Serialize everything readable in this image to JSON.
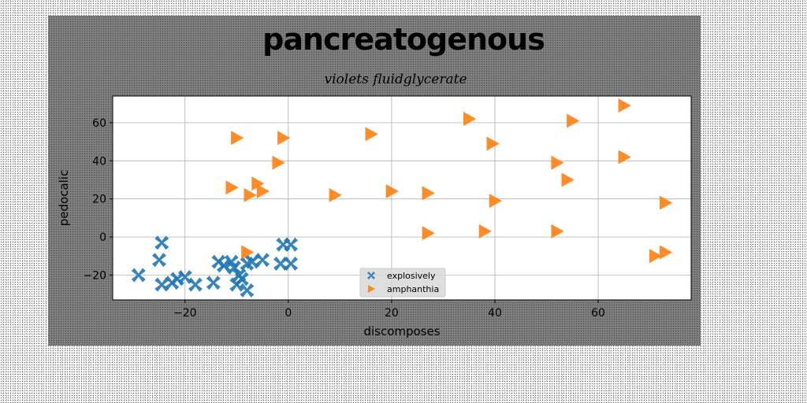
{
  "chart_data": {
    "type": "scatter",
    "title": "pancreatogenous",
    "subtitle": "violets fluidglycerate",
    "xlabel": "discomposes",
    "ylabel": "pedocalic",
    "xlim": [
      -34,
      78
    ],
    "ylim": [
      -33,
      74
    ],
    "xticks": [
      -20,
      0,
      20,
      40,
      60
    ],
    "yticks": [
      -20,
      0,
      20,
      40,
      60
    ],
    "xtick_labels": [
      "−20",
      "0",
      "20",
      "40",
      "60"
    ],
    "ytick_labels": [
      "−20",
      "0",
      "20",
      "40",
      "60"
    ],
    "grid": true,
    "legend_position": "lower center",
    "series": [
      {
        "name": "explosively",
        "color": "#1f77b4",
        "marker": "x",
        "points": [
          [
            -29,
            -20
          ],
          [
            -24.5,
            -3
          ],
          [
            -25,
            -12
          ],
          [
            -24.5,
            -25
          ],
          [
            -22.5,
            -24
          ],
          [
            -21.5,
            -22
          ],
          [
            -20,
            -21
          ],
          [
            -18,
            -25
          ],
          [
            -14.5,
            -24
          ],
          [
            -13.5,
            -13
          ],
          [
            -12.5,
            -15
          ],
          [
            -11,
            -13
          ],
          [
            -10.5,
            -16
          ],
          [
            -10,
            -25
          ],
          [
            -9.5,
            -20
          ],
          [
            -9,
            -22
          ],
          [
            -8,
            -28
          ],
          [
            -8,
            -14
          ],
          [
            -7,
            -13
          ],
          [
            -5,
            -12
          ],
          [
            -1,
            -4
          ],
          [
            -1.5,
            -14
          ],
          [
            0.5,
            -14
          ],
          [
            0.5,
            -4
          ]
        ]
      },
      {
        "name": "amphanthia",
        "color": "#ff7f0e",
        "marker": "triangle-right",
        "points": [
          [
            -10,
            52
          ],
          [
            -1,
            52
          ],
          [
            16,
            54
          ],
          [
            35,
            62
          ],
          [
            39.5,
            49
          ],
          [
            55,
            61
          ],
          [
            65,
            69
          ],
          [
            -2,
            39
          ],
          [
            52,
            39
          ],
          [
            65,
            42
          ],
          [
            54,
            30
          ],
          [
            -11,
            26
          ],
          [
            -6,
            28
          ],
          [
            -5,
            24
          ],
          [
            -7.5,
            22
          ],
          [
            9,
            22
          ],
          [
            20,
            24
          ],
          [
            27,
            23
          ],
          [
            40,
            19
          ],
          [
            73,
            18
          ],
          [
            27,
            2
          ],
          [
            38,
            3
          ],
          [
            52,
            3
          ],
          [
            -8,
            -8
          ],
          [
            71,
            -10
          ],
          [
            73,
            -8
          ]
        ]
      }
    ]
  }
}
